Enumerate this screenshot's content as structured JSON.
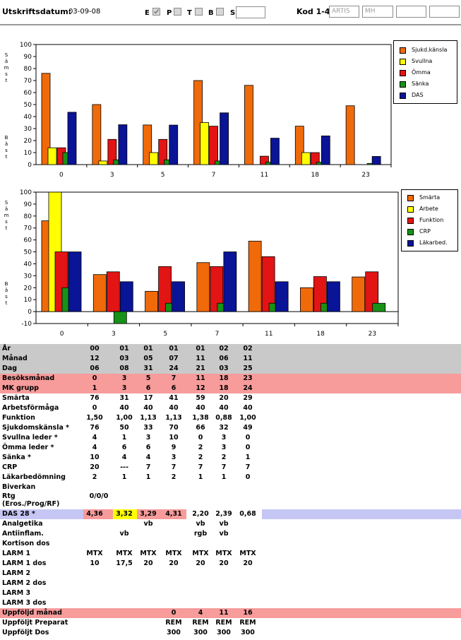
{
  "header": {
    "date_label": "Utskriftsdatum:",
    "date_value": "03-09-08",
    "checkboxes": [
      {
        "label": "E",
        "checked": true
      },
      {
        "label": "P",
        "checked": false
      },
      {
        "label": "T",
        "checked": false
      },
      {
        "label": "B",
        "checked": false
      },
      {
        "label": "S",
        "checked": false
      }
    ],
    "kod_label": "Kod 1-4",
    "kod_fields": [
      "ARTIS",
      "MH",
      "",
      ""
    ]
  },
  "axis_words": {
    "top": "Sämst",
    "bottom": "Bäst"
  },
  "chart_data": [
    {
      "type": "bar",
      "categories": [
        "0",
        "3",
        "5",
        "7",
        "11",
        "18",
        "23"
      ],
      "ylim": [
        0,
        100
      ],
      "yticks": [
        0,
        10,
        20,
        30,
        40,
        50,
        60,
        70,
        80,
        90,
        100
      ],
      "legend_position": "top-right",
      "series": [
        {
          "name": "Sjukd.känsla",
          "color": "#f06a0a",
          "values": [
            76,
            50,
            33,
            70,
            66,
            32,
            49
          ]
        },
        {
          "name": "Svullna",
          "color": "#ffff00",
          "values": [
            14,
            3,
            10,
            35,
            0,
            10,
            0
          ]
        },
        {
          "name": "Ömma",
          "color": "#e31414",
          "values": [
            14,
            21,
            21,
            32,
            7,
            10,
            0
          ]
        },
        {
          "name": "Sänka",
          "color": "#179217",
          "values": [
            10,
            4,
            4,
            3,
            2,
            2,
            1
          ]
        },
        {
          "name": "DAS",
          "color": "#0a1496",
          "values": [
            43.6,
            33.2,
            32.9,
            43.1,
            22,
            23.9,
            6.8
          ]
        }
      ]
    },
    {
      "type": "bar",
      "categories": [
        "0",
        "3",
        "5",
        "7",
        "11",
        "18",
        "23"
      ],
      "ylim": [
        -10,
        100
      ],
      "yticks": [
        -10,
        0,
        10,
        20,
        30,
        40,
        50,
        60,
        70,
        80,
        90,
        100
      ],
      "legend_position": "top-right",
      "series": [
        {
          "name": "Smärta",
          "color": "#f06a0a",
          "values": [
            76,
            31,
            17,
            41,
            59,
            20,
            29
          ]
        },
        {
          "name": "Arbete",
          "color": "#ffff00",
          "values": [
            100,
            0,
            0,
            0,
            0,
            0,
            0
          ]
        },
        {
          "name": "Funktion",
          "color": "#e31414",
          "values": [
            50,
            33.3,
            37.7,
            37.7,
            46,
            29.3,
            33.3
          ]
        },
        {
          "name": "CRP",
          "color": "#179217",
          "values": [
            20,
            -10,
            7,
            7,
            7,
            7,
            7
          ]
        },
        {
          "name": "Läkarbed.",
          "color": "#0a1496",
          "values": [
            50,
            25,
            25,
            50,
            25,
            25,
            0
          ]
        }
      ]
    }
  ],
  "table": [
    {
      "label": "År",
      "bg": "grey",
      "values": [
        "00",
        "01",
        "01",
        "01",
        "01",
        "02",
        "02"
      ]
    },
    {
      "label": "Månad",
      "bg": "grey",
      "values": [
        "12",
        "03",
        "05",
        "07",
        "11",
        "06",
        "11"
      ]
    },
    {
      "label": "Dag",
      "bg": "grey",
      "values": [
        "06",
        "08",
        "31",
        "24",
        "21",
        "03",
        "25"
      ]
    },
    {
      "label": "Besöksmånad",
      "bg": "pink",
      "values": [
        "0",
        "3",
        "5",
        "7",
        "11",
        "18",
        "23"
      ]
    },
    {
      "label": "MK grupp",
      "bg": "pink",
      "values": [
        "1",
        "3",
        "6",
        "6",
        "12",
        "18",
        "24"
      ]
    },
    {
      "label": "Smärta",
      "values": [
        "76",
        "31",
        "17",
        "41",
        "59",
        "20",
        "29"
      ]
    },
    {
      "label": "Arbetsförmåga",
      "values": [
        "0",
        "40",
        "40",
        "40",
        "40",
        "40",
        "40"
      ]
    },
    {
      "label": "Funktion",
      "values": [
        "1,50",
        "1,00",
        "1,13",
        "1,13",
        "1,38",
        "0,88",
        "1,00"
      ]
    },
    {
      "label": "Sjukdomskänsla *",
      "values": [
        "76",
        "50",
        "33",
        "70",
        "66",
        "32",
        "49"
      ]
    },
    {
      "label": "Svullna leder *",
      "values": [
        "4",
        "1",
        "3",
        "10",
        "0",
        "3",
        "0"
      ]
    },
    {
      "label": "Ömma leder *",
      "values": [
        "4",
        "6",
        "6",
        "9",
        "2",
        "3",
        "0"
      ]
    },
    {
      "label": "Sänka *",
      "values": [
        "10",
        "4",
        "4",
        "3",
        "2",
        "2",
        "1"
      ]
    },
    {
      "label": "CRP",
      "values": [
        "20",
        "---",
        "7",
        "7",
        "7",
        "7",
        "7"
      ]
    },
    {
      "label": "Läkarbedömning",
      "values": [
        "2",
        "1",
        "1",
        "2",
        "1",
        "1",
        "0"
      ]
    },
    {
      "label": "Biverkan",
      "values": [
        "",
        "",
        "",
        "",
        "",
        "",
        ""
      ]
    },
    {
      "label": "Rtg",
      "label2": "(Eros./Prog/RF)",
      "tall": true,
      "values": [
        "0/0/0",
        "",
        "",
        "",
        "",
        "",
        ""
      ]
    },
    {
      "label": "DAS 28 *",
      "bg": "das",
      "values": [
        "4,36",
        "3,32",
        "3,29",
        "4,31",
        "2,20",
        "2,39",
        "0,68"
      ],
      "cell_colors": [
        "#f79b9b",
        "#ffff00",
        "#f79b9b",
        "#f79b9b",
        "",
        "",
        ""
      ]
    },
    {
      "label": "Analgetika",
      "values": [
        "",
        "",
        "vb",
        "",
        "vb",
        "vb",
        ""
      ]
    },
    {
      "label": "Antiinflam.",
      "values": [
        "",
        "vb",
        "",
        "",
        "rgb",
        "vb",
        ""
      ]
    },
    {
      "label": "Kortison dos",
      "values": [
        "",
        "",
        "",
        "",
        "",
        "",
        ""
      ]
    },
    {
      "label": "LARM 1",
      "values": [
        "MTX",
        "MTX",
        "MTX",
        "MTX",
        "MTX",
        "MTX",
        "MTX"
      ]
    },
    {
      "label": "LARM 1 dos",
      "values": [
        "10",
        "17,5",
        "20",
        "20",
        "20",
        "20",
        "20"
      ]
    },
    {
      "label": "LARM 2",
      "values": [
        "",
        "",
        "",
        "",
        "",
        "",
        ""
      ]
    },
    {
      "label": "LARM 2 dos",
      "values": [
        "",
        "",
        "",
        "",
        "",
        "",
        ""
      ]
    },
    {
      "label": "LARM 3",
      "values": [
        "",
        "",
        "",
        "",
        "",
        "",
        ""
      ]
    },
    {
      "label": "LARM 3 dos",
      "values": [
        "",
        "",
        "",
        "",
        "",
        "",
        ""
      ]
    },
    {
      "label": "Uppföljd månad",
      "bg": "pink",
      "values": [
        "",
        "",
        "",
        "0",
        "4",
        "11",
        "16"
      ]
    },
    {
      "label": "Uppföljt Preparat",
      "values": [
        "",
        "",
        "",
        "REM",
        "REM",
        "REM",
        "REM"
      ]
    },
    {
      "label": "Uppföljt Dos",
      "values": [
        "",
        "",
        "",
        "300",
        "300",
        "300",
        "300"
      ]
    }
  ],
  "colors": {
    "grey_row": "#c9c9c9",
    "pink_row": "#f79b9b",
    "das_band": "#c6c6f5"
  }
}
